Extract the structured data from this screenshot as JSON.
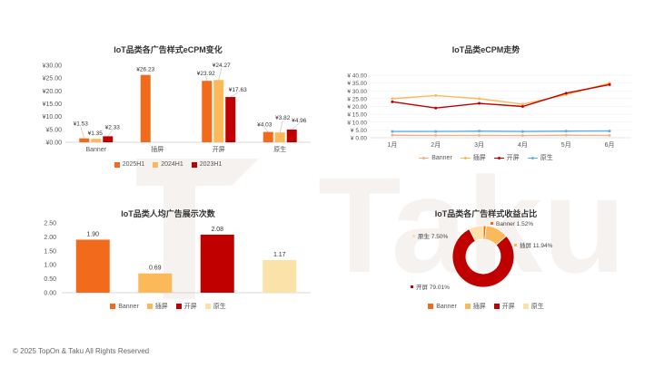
{
  "colors": {
    "banner": "#F26A1B",
    "interstitial": "#FBB95A",
    "splash": "#C00000",
    "native": "#FBE2A8",
    "line_banner": "#F4B183",
    "line_native": "#5BB0E8",
    "watermark": "#F5F2EF"
  },
  "watermark": {
    "text": "Taku"
  },
  "footer": {
    "copyright": "© 2025 TopOn & Taku All Rights Reserved"
  },
  "chart_data": [
    {
      "type": "bar",
      "title": "IoT品类各广告样式eCPM变化",
      "categories": [
        "Banner",
        "插屏",
        "开屏",
        "原生"
      ],
      "series": [
        {
          "name": "2025H1",
          "values": [
            1.53,
            26.23,
            23.92,
            4.03
          ],
          "labels": [
            "¥1.53",
            "¥26.23",
            "¥23.92",
            "¥4.03"
          ],
          "color_key": "banner"
        },
        {
          "name": "2024H1",
          "values": [
            1.35,
            null,
            24.27,
            3.82
          ],
          "labels": [
            "¥1.35",
            "",
            "¥24.27",
            "¥3.82"
          ],
          "color_key": "interstitial"
        },
        {
          "name": "2023H1",
          "values": [
            2.33,
            null,
            17.63,
            4.96
          ],
          "labels": [
            "¥2.33",
            "",
            "¥17.63",
            "¥4.96"
          ],
          "color_key": "splash"
        }
      ],
      "ylim": [
        0,
        30
      ],
      "yticks": [
        0,
        5,
        10,
        15,
        20,
        25,
        30
      ],
      "ytick_labels": [
        "¥0.00",
        "¥5.00",
        "¥10.00",
        "¥15.00",
        "¥20.00",
        "¥25.00",
        "¥30.00"
      ],
      "legend_position": "bottom"
    },
    {
      "type": "line",
      "title": "IoT品类eCPM走势",
      "x": [
        "1月",
        "2月",
        "3月",
        "4月",
        "5月",
        "6月"
      ],
      "series": [
        {
          "name": "Banner",
          "values": [
            1.6,
            1.5,
            1.5,
            1.4,
            1.6,
            1.5
          ],
          "color_key": "line_banner"
        },
        {
          "name": "插屏",
          "values": [
            25.0,
            27.0,
            25.0,
            21.5,
            27.5,
            35.0
          ],
          "color_key": "interstitial"
        },
        {
          "name": "开屏",
          "values": [
            23.0,
            19.0,
            22.0,
            20.0,
            28.5,
            34.0
          ],
          "color_key": "splash"
        },
        {
          "name": "原生",
          "values": [
            4.0,
            4.0,
            4.2,
            4.0,
            4.2,
            4.3
          ],
          "color_key": "line_native"
        }
      ],
      "ylim": [
        0,
        40
      ],
      "yticks": [
        0,
        5,
        10,
        15,
        20,
        25,
        30,
        35,
        40
      ],
      "ytick_labels": [
        "¥ 0.00",
        "¥ 5.00",
        "¥ 10.00",
        "¥ 15.00",
        "¥ 20.00",
        "¥ 25.00",
        "¥ 30.00",
        "¥ 35.00",
        "¥ 40.00"
      ],
      "grid": true,
      "legend_position": "bottom"
    },
    {
      "type": "bar",
      "title": "IoT品类人均广告展示次数",
      "categories": [
        "Banner",
        "插屏",
        "开屏",
        "原生"
      ],
      "values": [
        1.9,
        0.69,
        2.08,
        1.17
      ],
      "labels": [
        "1.90",
        "0.69",
        "2.08",
        "1.17"
      ],
      "color_keys": [
        "banner",
        "interstitial",
        "splash",
        "native"
      ],
      "ylim": [
        0,
        2.5
      ],
      "yticks": [
        0,
        0.5,
        1.0,
        1.5,
        2.0,
        2.5
      ],
      "ytick_labels": [
        "0.00",
        "0.50",
        "1.00",
        "1.50",
        "2.00",
        "2.50"
      ],
      "legend_position": "bottom"
    },
    {
      "type": "pie",
      "title": "IoT品类各广告样式收益占比",
      "labels": [
        "Banner",
        "插屏",
        "开屏",
        "原生"
      ],
      "values": [
        1.52,
        11.94,
        79.01,
        7.5
      ],
      "data_labels": [
        "Banner 1.52%",
        "插屏 11.94%",
        "开屏 79.01%",
        "原生 7.50%"
      ],
      "color_keys": [
        "banner",
        "interstitial",
        "splash",
        "native"
      ],
      "donut": true,
      "legend_position": "bottom"
    }
  ]
}
